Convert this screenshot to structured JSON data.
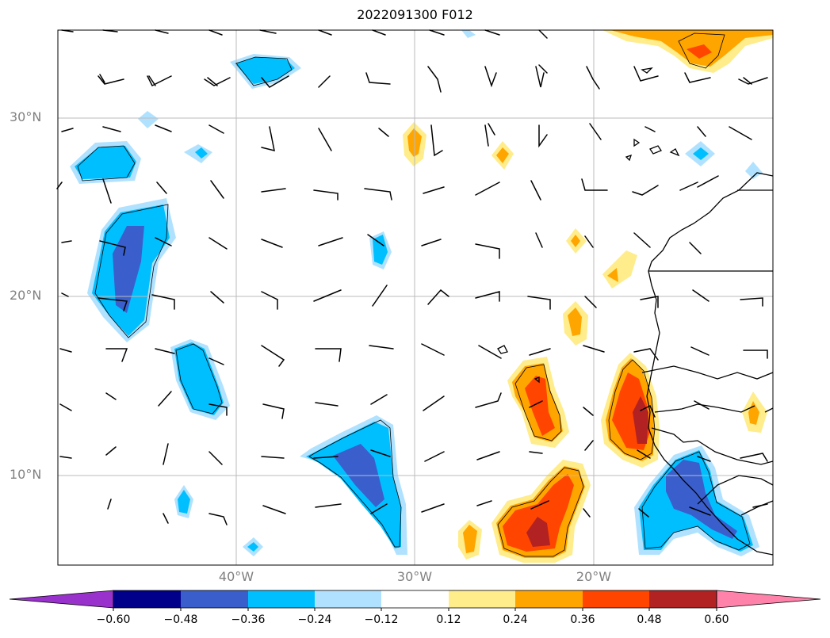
{
  "title": "2022091300 F012",
  "lat_labels": [
    "30°N",
    "20°N",
    "10°N"
  ],
  "lon_labels": [
    "40°W",
    "30°W",
    "20°W"
  ],
  "colorbar": {
    "ticks": [
      "−0.60",
      "−0.48",
      "−0.36",
      "−0.24",
      "−0.12",
      "0.12",
      "0.24",
      "0.36",
      "0.48",
      "0.60"
    ],
    "colors": [
      "#9932cc",
      "#00008b",
      "#3a5fcd",
      "#00bfff",
      "#b0e2ff",
      "#ffffff",
      "#ffec8b",
      "#ffa500",
      "#ff4500",
      "#b22222",
      "#ff82ab"
    ]
  },
  "map": {
    "grid": true,
    "extent": {
      "lon": [
        -50,
        -10
      ],
      "lat": [
        5,
        35
      ]
    },
    "colors": {
      "blue_dark": "#3a5fcd",
      "blue_mid": "#00bfff",
      "blue_light": "#b0e2ff",
      "navy": "#00008b",
      "yellow": "#ffec8b",
      "orange": "#ffa500",
      "red_orange": "#ff4500",
      "dark_red": "#b22222"
    }
  }
}
